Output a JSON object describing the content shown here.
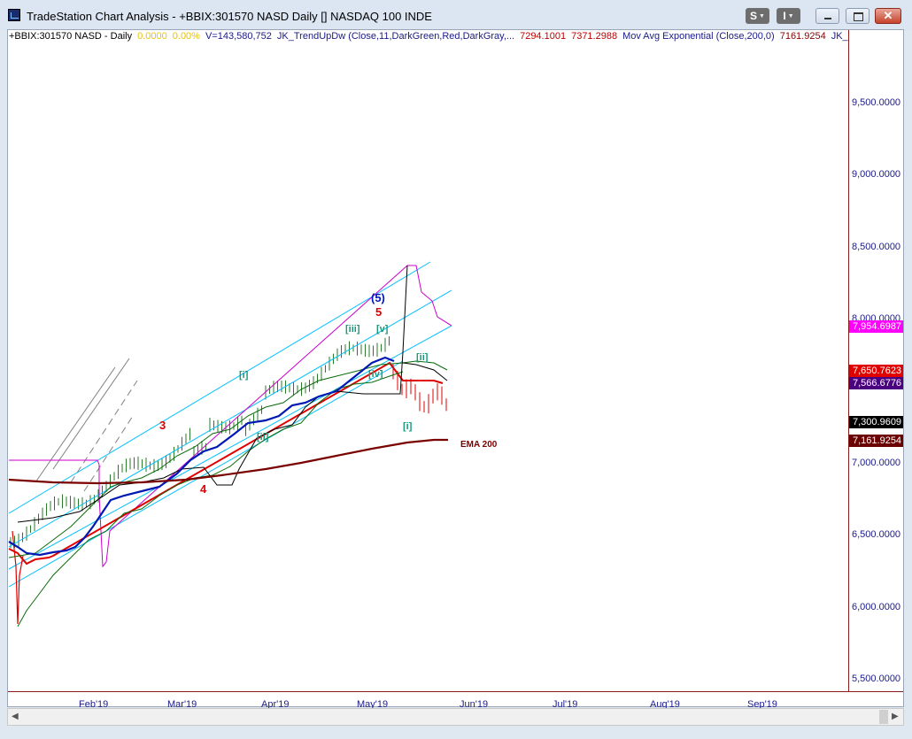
{
  "window": {
    "title": "TradeStation Chart Analysis - +BBIX:301570 NASD Daily [] NASDAQ 100 INDE",
    "buttons": {
      "s": "S",
      "i": "I",
      "close": "✕"
    }
  },
  "infobar": [
    {
      "text": "+BBIX:301570 NASD - Daily",
      "color": "#000000"
    },
    {
      "text": "0.0000",
      "color": "#e8c200"
    },
    {
      "text": "0.00%",
      "color": "#e8c200"
    },
    {
      "text": "V=143,580,752",
      "color": "#1a1a8c"
    },
    {
      "text": "JK_TrendUpDw (Close,11,DarkGreen,Red,DarkGray,...",
      "color": "#1a1a8c"
    },
    {
      "text": "7294.1001",
      "color": "#c00000"
    },
    {
      "text": "7371.2988",
      "color": "#c00000"
    },
    {
      "text": "Mov Avg Exponential (Close,200,0)",
      "color": "#1a1a8c"
    },
    {
      "text": "7161.9254",
      "color": "#8b0000"
    },
    {
      "text": "JK_F...",
      "color": "#1a1a8c"
    }
  ],
  "y_axis_labels": [
    "9,500.0000",
    "9,000.0000",
    "8,500.0000",
    "8,000.0000",
    "7,000.0000",
    "6,500.0000",
    "6,000.0000",
    "5,500.0000"
  ],
  "y_axis_values": [
    9500,
    9000,
    8500,
    8000,
    7000,
    6500,
    6000,
    5500
  ],
  "price_flags": [
    {
      "value": 7954.6987,
      "label": "7,954.6987",
      "bg": "#ff00ff",
      "fg": "#ffffff"
    },
    {
      "value": 7650.7623,
      "label": "7,650.7623",
      "bg": "#e00000",
      "fg": "#ffffff"
    },
    {
      "value": 7566.6776,
      "label": "7,566.6776",
      "bg": "#4b0082",
      "fg": "#ffffff"
    },
    {
      "value": 7300.9609,
      "label": "7,300.9609",
      "bg": "#000000",
      "fg": "#ffffff"
    },
    {
      "value": 7161.9254,
      "label": "7,161.9254",
      "bg": "#6b0000",
      "fg": "#ffffff"
    }
  ],
  "x_axis_labels": [
    "Feb'19",
    "Mar'19",
    "Apr'19",
    "May'19",
    "Jun'19",
    "Jul'19",
    "Aug'19",
    "Sep'19"
  ],
  "annotations": {
    "w5_blue": "(5)",
    "w5_red": "5",
    "w3_red": "3",
    "w4_red": "4",
    "iii": "[iii]",
    "v": "[v]",
    "i_top": "[i]",
    "ii": "[ii]",
    "iv": "[iv]",
    "ii_right": "[ii]",
    "i_bottom": "[i]",
    "ema": "EMA 200"
  },
  "colors": {
    "channel": "#00bfff",
    "trend_blue": "#0018b4",
    "ema": "#7a0000",
    "green_band": "#0a6a0a",
    "black_line": "#000000",
    "magenta": "#cc00cc",
    "red_price": "#e00000",
    "bar_green": "#2a7a2a"
  }
}
